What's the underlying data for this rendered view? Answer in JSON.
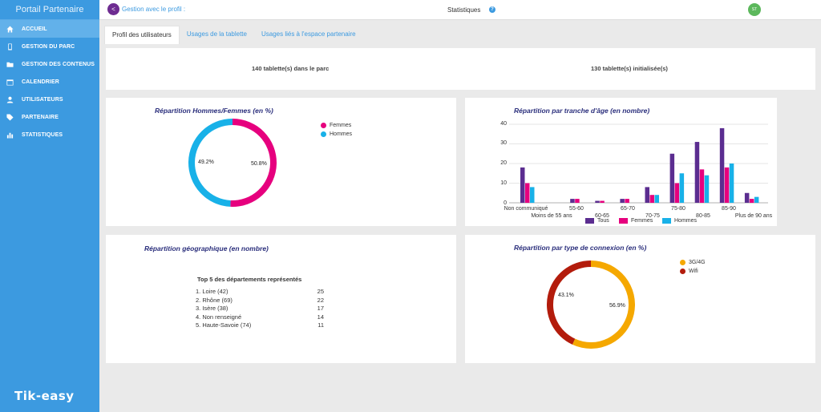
{
  "sidebar": {
    "brand": "Portail Partenaire",
    "items": [
      {
        "label": "ACCUEIL",
        "icon": "home-icon"
      },
      {
        "label": "GESTION DU PARC",
        "icon": "tablet-icon"
      },
      {
        "label": "GESTION DES CONTENUS",
        "icon": "folder-icon"
      },
      {
        "label": "CALENDRIER",
        "icon": "calendar-icon"
      },
      {
        "label": "UTILISATEURS",
        "icon": "user-icon"
      },
      {
        "label": "PARTENAIRE",
        "icon": "tag-icon"
      },
      {
        "label": "STATISTIQUES",
        "icon": "bar-chart-icon"
      }
    ],
    "logo": "Tik-easy"
  },
  "topbar": {
    "back_label": "<",
    "profile_link": "Gestion avec le profil :",
    "title": "Statistiques",
    "help": "?",
    "avatar_initials": "ST"
  },
  "tabs": [
    {
      "label": "Profil des utilisateurs"
    },
    {
      "label": "Usages de la tablette"
    },
    {
      "label": "Usages liés à l'espace partenaire"
    }
  ],
  "summary": {
    "tablets_in_park": "140 tablette(s) dans le parc",
    "tablets_initialized": "130 tablette(s) initialisée(s)"
  },
  "gender": {
    "title": "Répartition Hommes/Femmes (en %)",
    "legend": [
      "Femmes",
      "Hommes"
    ],
    "labels": [
      "50.8%",
      "49.2%"
    ]
  },
  "age": {
    "title": "Répartition par tranche d'âge (en nombre)",
    "legend": [
      "Tous",
      "Femmes",
      "Hommes"
    ],
    "ticks": [
      "0",
      "10",
      "20",
      "30",
      "40"
    ],
    "categories_top": [
      "Non communiqué",
      "55-60",
      "65-70",
      "75-80",
      "85-90"
    ],
    "categories_bottom": [
      "Moins de 55 ans",
      "60-65",
      "70-75",
      "80-85",
      "Plus de 90 ans"
    ]
  },
  "geo": {
    "title": "Répartition géographique (en nombre)",
    "list_title": "Top 5 des départements représentés",
    "rows": [
      {
        "name": "1. Loire (42)",
        "value": "25"
      },
      {
        "name": "2. Rhône (69)",
        "value": "22"
      },
      {
        "name": "3. Isère (38)",
        "value": "17"
      },
      {
        "name": "4. Non renseigné",
        "value": "14"
      },
      {
        "name": "5. Haute-Savoie (74)",
        "value": "11"
      }
    ]
  },
  "connection": {
    "title": "Répartition par type de connexion (en %)",
    "legend": [
      "3G/4G",
      "Wifi"
    ],
    "labels": [
      "56.9%",
      "43.1%"
    ]
  },
  "colors": {
    "sidebar": "#3c9ae0",
    "femmes": "#e6007e",
    "hommes": "#18b1e8",
    "tous": "#5b2d90",
    "g3g4g": "#f5a800",
    "wifi": "#b31c0c"
  },
  "chart_data": [
    {
      "type": "pie",
      "title": "Répartition Hommes/Femmes (en %)",
      "labels": [
        "Femmes",
        "Hommes"
      ],
      "values": [
        50.8,
        49.2
      ]
    },
    {
      "type": "bar",
      "title": "Répartition par tranche d'âge (en nombre)",
      "categories": [
        "Non communiqué",
        "Moins de 55 ans",
        "55-60",
        "60-65",
        "65-70",
        "70-75",
        "75-80",
        "80-85",
        "85-90",
        "Plus de 90 ans"
      ],
      "series": [
        {
          "name": "Tous",
          "values": [
            18,
            0,
            2,
            1,
            2,
            8,
            25,
            31,
            38,
            5
          ]
        },
        {
          "name": "Femmes",
          "values": [
            10,
            0,
            2,
            1,
            2,
            4,
            10,
            17,
            18,
            2
          ]
        },
        {
          "name": "Hommes",
          "values": [
            8,
            0,
            0,
            0,
            0,
            4,
            15,
            14,
            20,
            3
          ]
        }
      ],
      "ylim": [
        0,
        40
      ],
      "grid": true,
      "legend": "bottom"
    },
    {
      "type": "pie",
      "title": "Répartition par type de connexion (en %)",
      "labels": [
        "3G/4G",
        "Wifi"
      ],
      "values": [
        56.9,
        43.1
      ]
    }
  ]
}
